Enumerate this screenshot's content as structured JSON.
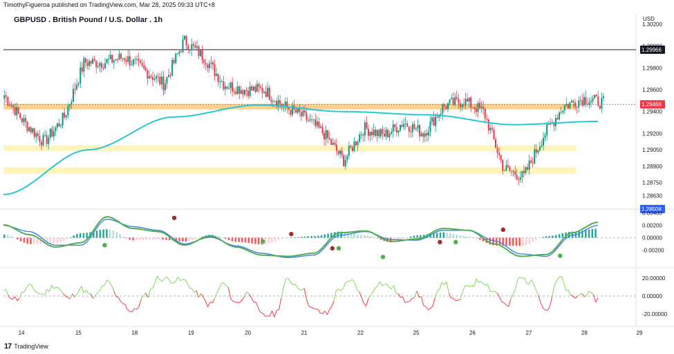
{
  "header": {
    "publisher_line": "TimothyFigueroa published on TradingView.com, Mar 28, 2025 09:33 UTC+8"
  },
  "footer": {
    "brand": "TradingView",
    "logo_glyph": "17"
  },
  "colors": {
    "up": "#089981",
    "down": "#f23645",
    "ma": "#26c6da",
    "zone_orange": "#fbc979",
    "zone_yellow": "#fff3b3",
    "macd_fast": "#4caf50",
    "macd_slow_dark": "#a52a2a",
    "macd_signal": "#3f7fe6",
    "hist_up": "#26a69a",
    "hist_up_light": "#b2dfdb",
    "hist_down": "#ff5252",
    "hist_down_light": "#ffcdd2",
    "osc_up": "#7ed957",
    "osc_down": "#f23645",
    "price_tag_red": "#f23645"
  },
  "chart_data": [
    {
      "type": "candlestick",
      "title": "GBPUSD . British Pound / U.S. Dollar . 1h",
      "currency": "USD",
      "ylim": [
        1.2852,
        1.302
      ],
      "y_ticks": [
        "1.30200",
        "1.30000",
        "1.29800",
        "1.29600",
        "1.29400",
        "1.29200",
        "1.29050",
        "1.28900",
        "1.28750",
        "1.28630",
        "1.28500"
      ],
      "x_ticks": [
        "14",
        "15",
        "18",
        "19",
        "20",
        "21",
        "22",
        "25",
        "26",
        "27",
        "28",
        "29"
      ],
      "close_anchors": [
        1.2955,
        1.293,
        1.2912,
        1.2935,
        1.2985,
        1.2985,
        1.299,
        1.2978,
        1.2965,
        1.3005,
        1.299,
        1.2965,
        1.296,
        1.296,
        1.2945,
        1.2935,
        1.292,
        1.2895,
        1.2925,
        1.2918,
        1.293,
        1.292,
        1.2945,
        1.295,
        1.294,
        1.2888,
        1.288,
        1.2918,
        1.2945,
        1.2952,
        1.2948
      ],
      "moving_average": [
        1.2864,
        1.2905,
        1.2935,
        1.2946,
        1.294,
        1.2937,
        1.2928,
        1.2931
      ],
      "zones": [
        {
          "name": "orange-zone",
          "from": 1.29425,
          "to": 1.2947,
          "start": 0.0,
          "end": 0.905
        },
        {
          "name": "yellow-zone-upper",
          "from": 1.29045,
          "to": 1.2909,
          "start": 0.0,
          "end": 0.905
        },
        {
          "name": "yellow-zone-lower",
          "from": 1.2883,
          "to": 1.2889,
          "start": 0.0,
          "end": 0.905
        }
      ],
      "horizontal_line": 1.29966,
      "price_tags": [
        {
          "label": "1.29966",
          "value": 1.29966,
          "style": "black"
        },
        {
          "label": "1.29466",
          "value": 1.29466,
          "style": "red"
        },
        {
          "label": "1.28508",
          "value": 1.28508,
          "style": "blue"
        }
      ]
    },
    {
      "type": "line",
      "title": "MACD",
      "ylim": [
        -0.0045,
        0.0044
      ],
      "y_ticks": [
        "0.00400",
        "0.00200",
        "0.00000",
        "-0.00200"
      ],
      "zero": 0.0,
      "fast": [
        0.0021,
        0.0005,
        -0.0015,
        -0.0008,
        0.0034,
        0.0015,
        0.001,
        -0.0012,
        0.0003,
        -0.0015,
        -0.0028,
        -0.003,
        -0.0025,
        0.0008,
        0.0011,
        -0.0006,
        -0.0002,
        0.0015,
        0.0012,
        -0.001,
        -0.003,
        -0.0027,
        0.0008,
        0.0025
      ],
      "slow": [
        0.002,
        0.001,
        -0.0012,
        -0.0012,
        0.003,
        0.0018,
        0.0012,
        -0.001,
        0.0001,
        -0.0013,
        -0.0025,
        -0.0032,
        -0.0028,
        0.0004,
        0.001,
        -0.0003,
        -0.0004,
        0.0012,
        0.0012,
        -0.0005,
        -0.0026,
        -0.003,
        0.0004,
        0.002
      ],
      "cross_points": [
        {
          "x": 0.16,
          "y": -0.0012,
          "kind": "bull"
        },
        {
          "x": 0.27,
          "y": 0.0032,
          "kind": "bear"
        },
        {
          "x": 0.41,
          "y": -0.0006,
          "kind": "bull"
        },
        {
          "x": 0.455,
          "y": 0.0006,
          "kind": "bear"
        },
        {
          "x": 0.52,
          "y": -0.0017,
          "kind": "bear"
        },
        {
          "x": 0.53,
          "y": -0.0017,
          "kind": "bull"
        },
        {
          "x": 0.6,
          "y": -0.0031,
          "kind": "bull"
        },
        {
          "x": 0.69,
          "y": -0.0007,
          "kind": "bear"
        },
        {
          "x": 0.715,
          "y": -0.0007,
          "kind": "bull"
        },
        {
          "x": 0.79,
          "y": 0.0013,
          "kind": "bear"
        },
        {
          "x": 0.88,
          "y": -0.0029,
          "kind": "bull"
        }
      ]
    },
    {
      "type": "line",
      "title": "Oscillator",
      "ylim": [
        -30,
        30
      ],
      "y_ticks": [
        "20.00000",
        "0.00000",
        "-20.00000"
      ],
      "values": [
        5,
        -3,
        10,
        2,
        12,
        -3,
        8,
        -2,
        15,
        -4,
        -18,
        0,
        20,
        18,
        17,
        2,
        -10,
        14,
        -8,
        4,
        -22,
        -20,
        18,
        10,
        -16,
        -20,
        8,
        16,
        -8,
        15,
        10,
        -5,
        2,
        -17,
        17,
        -8,
        12,
        18,
        5,
        -12,
        20,
        14,
        -16,
        20,
        -2,
        3,
        -4
      ]
    }
  ]
}
